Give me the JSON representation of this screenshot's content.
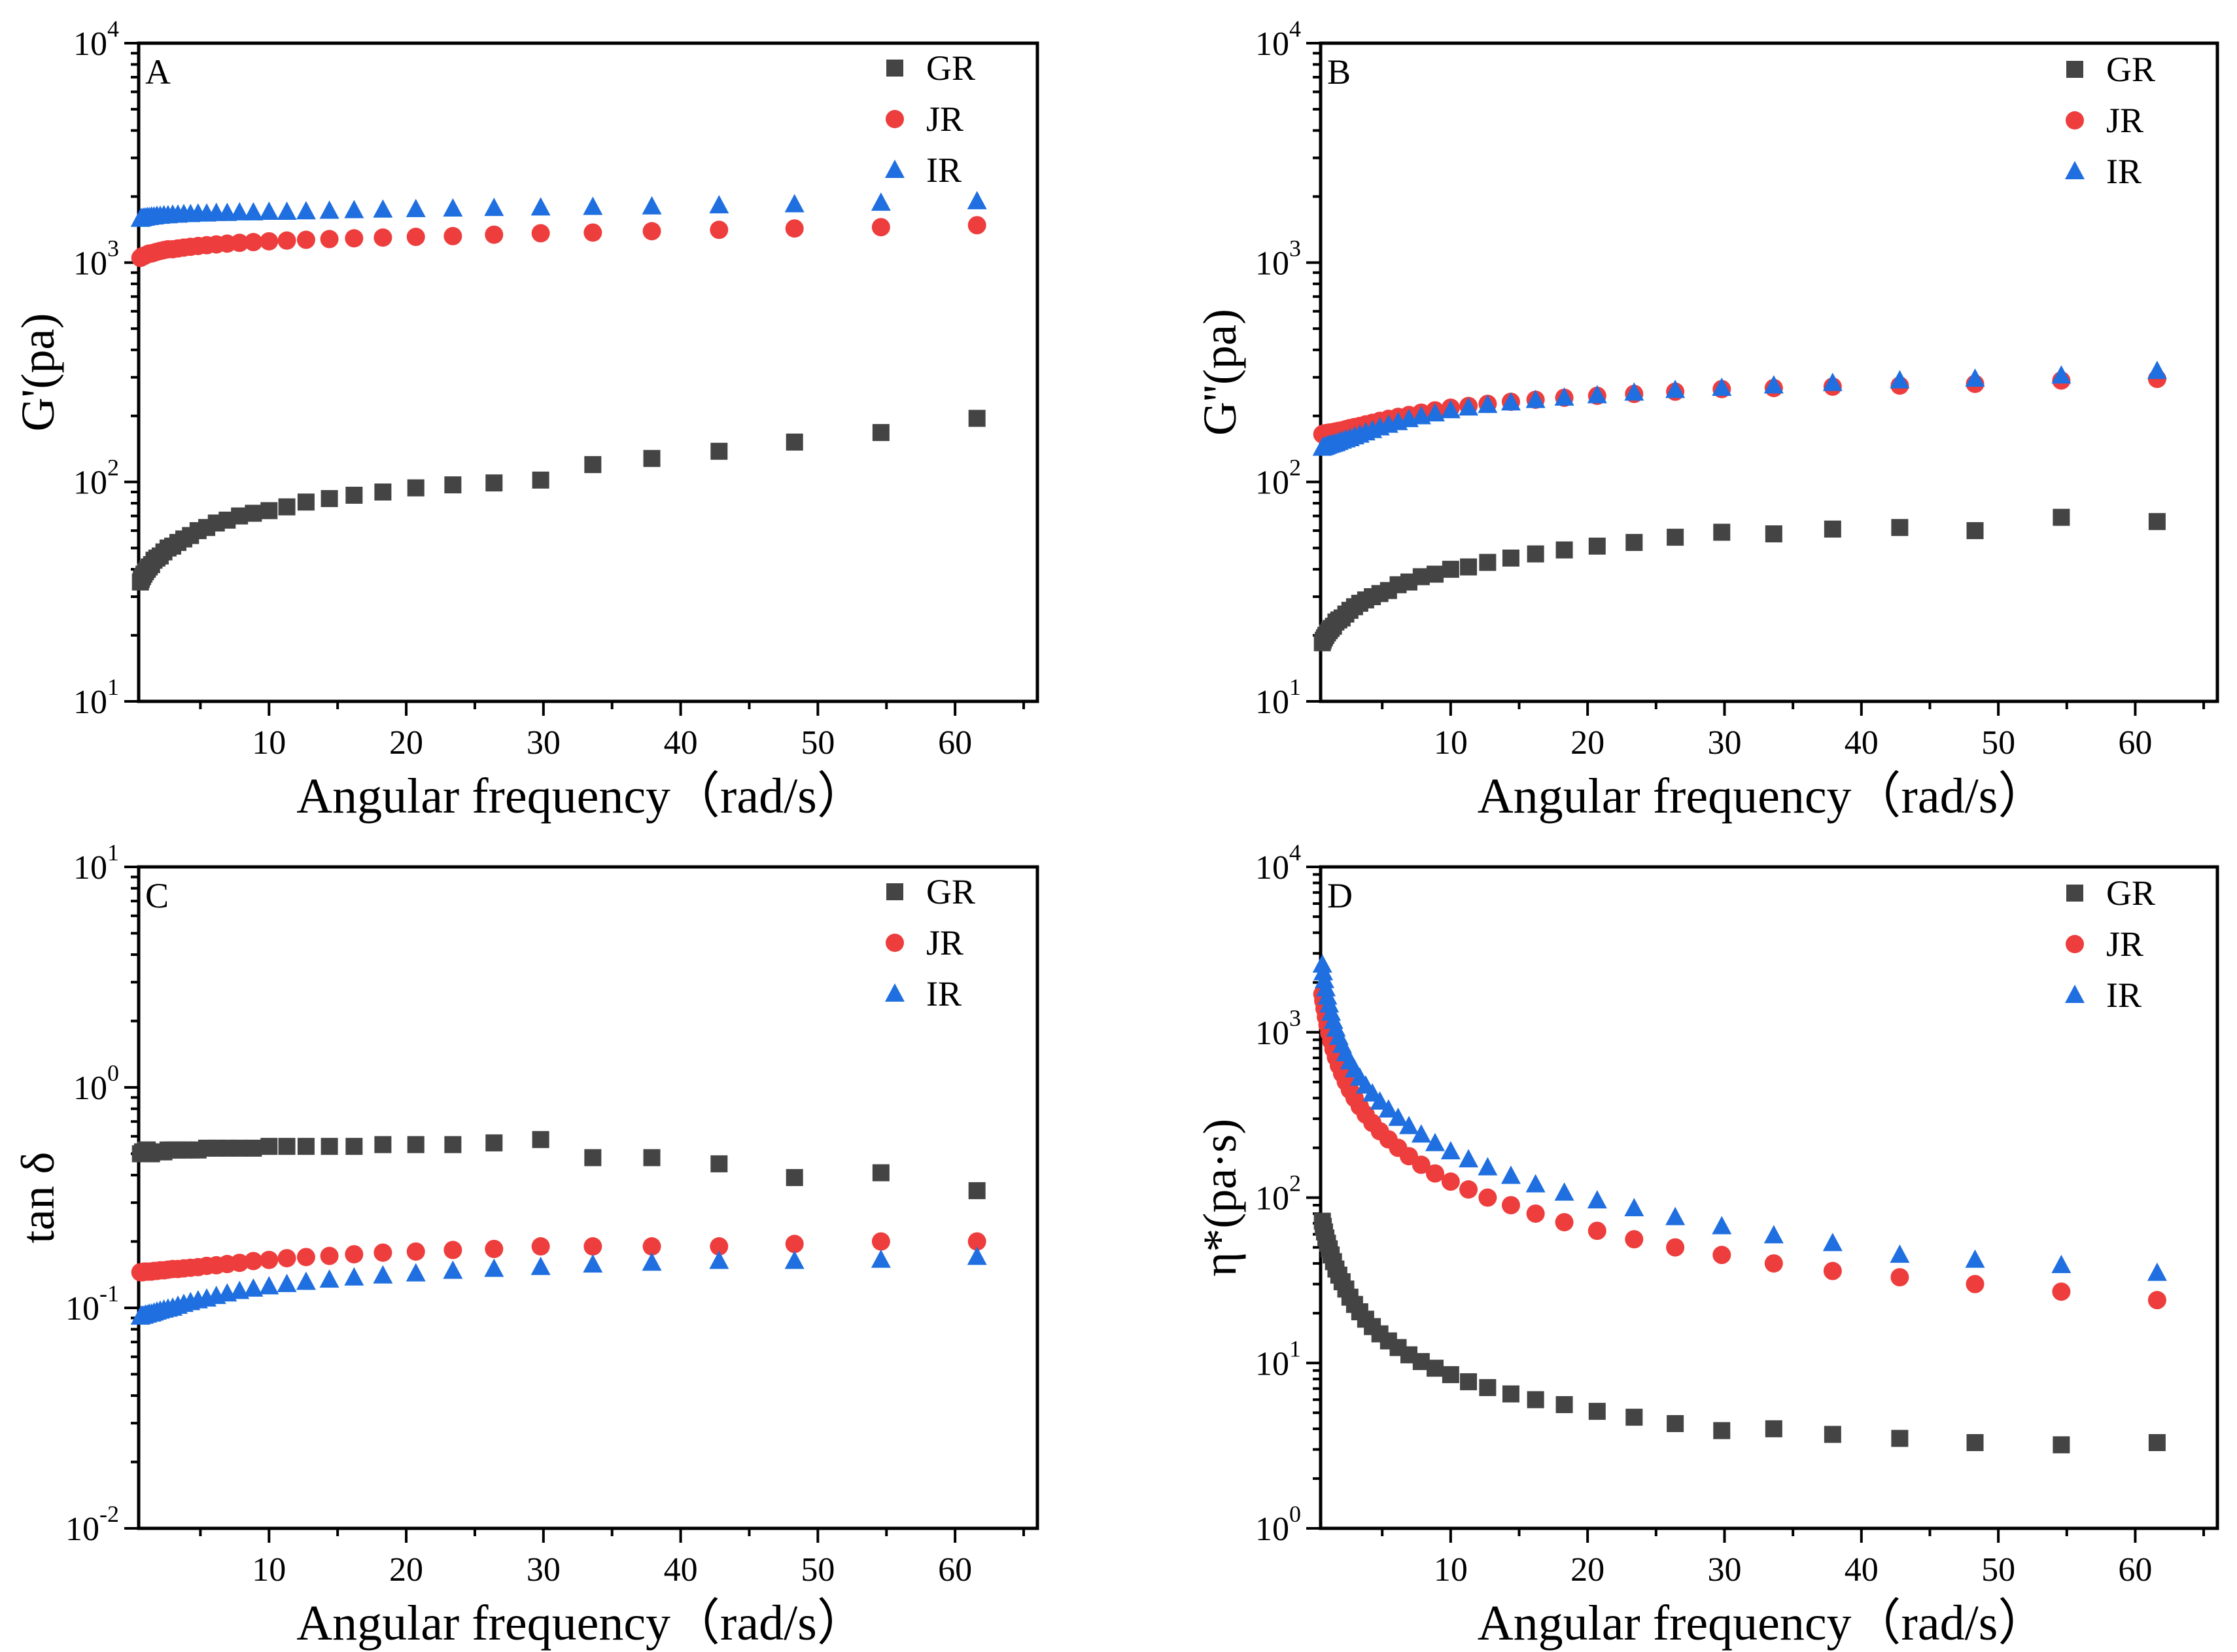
{
  "colors": {
    "GR": "#444444",
    "JR": "#ee3d3d",
    "IR": "#1f6fe0",
    "axis": "#000000"
  },
  "x_shared": [
    61.6,
    54.6,
    48.3,
    42.8,
    37.9,
    33.6,
    29.8,
    26.4,
    23.4,
    20.7,
    18.3,
    16.2,
    14.4,
    12.7,
    11.3,
    10.0,
    8.86,
    7.85,
    6.95,
    6.16,
    5.46,
    4.83,
    4.28,
    3.79,
    3.36,
    2.98,
    2.64,
    2.34,
    2.07,
    1.83,
    1.62,
    1.44,
    1.27,
    1.13,
    1.0,
    0.886,
    0.785,
    0.695,
    0.628
  ],
  "chart_data": [
    {
      "type": "scatter",
      "panel": "A",
      "xlabel": "Angular frequency（rad/s）",
      "ylabel": "G'(pa)",
      "yscale": "log",
      "xlim": [
        0.5,
        66
      ],
      "ylim_exp": [
        1,
        4
      ],
      "xticks": [
        10,
        20,
        30,
        40,
        50,
        60
      ],
      "yticks_exp": [
        1,
        2,
        3,
        4
      ],
      "legend": "top-right",
      "series": [
        {
          "name": "GR",
          "marker": "square",
          "values": [
            195,
            168,
            152,
            138,
            128,
            120,
            102,
            99,
            97,
            94,
            90,
            87,
            84,
            81,
            77,
            74,
            72,
            70,
            67,
            65,
            62,
            60,
            57,
            55,
            53,
            51,
            50,
            48,
            46,
            45,
            44,
            42,
            41,
            40,
            39,
            38,
            37,
            36,
            35
          ]
        },
        {
          "name": "JR",
          "marker": "circle",
          "values": [
            1480,
            1450,
            1430,
            1410,
            1390,
            1370,
            1360,
            1340,
            1320,
            1310,
            1300,
            1290,
            1280,
            1270,
            1260,
            1250,
            1240,
            1230,
            1220,
            1210,
            1200,
            1190,
            1180,
            1170,
            1160,
            1150,
            1150,
            1140,
            1130,
            1120,
            1110,
            1100,
            1100,
            1090,
            1080,
            1070,
            1070,
            1060,
            1050
          ]
        },
        {
          "name": "IR",
          "marker": "triangle",
          "values": [
            1900,
            1870,
            1840,
            1820,
            1800,
            1790,
            1780,
            1770,
            1760,
            1750,
            1740,
            1730,
            1720,
            1710,
            1700,
            1700,
            1690,
            1690,
            1680,
            1680,
            1670,
            1670,
            1660,
            1660,
            1650,
            1650,
            1640,
            1640,
            1630,
            1630,
            1620,
            1620,
            1610,
            1610,
            1600,
            1600,
            1590,
            1590,
            1580
          ]
        }
      ]
    },
    {
      "type": "scatter",
      "panel": "B",
      "xlabel": "Angular frequency（rad/s）",
      "ylabel": "G''(pa)",
      "yscale": "log",
      "xlim": [
        0.5,
        66
      ],
      "ylim_exp": [
        1,
        4
      ],
      "xticks": [
        10,
        20,
        30,
        40,
        50,
        60
      ],
      "yticks_exp": [
        1,
        2,
        3,
        4
      ],
      "legend": "top-right",
      "series": [
        {
          "name": "GR",
          "marker": "square",
          "values": [
            66,
            69,
            60,
            62,
            61,
            58,
            59,
            56,
            53,
            51,
            49,
            47,
            45,
            43,
            41,
            40,
            38,
            37,
            35,
            34,
            32,
            31,
            30,
            29,
            28,
            27,
            26,
            25,
            24,
            23.5,
            23,
            22,
            21.5,
            21,
            20.5,
            20,
            19.5,
            19,
            18.5
          ]
        },
        {
          "name": "JR",
          "marker": "circle",
          "values": [
            295,
            290,
            280,
            275,
            272,
            268,
            265,
            258,
            252,
            247,
            242,
            237,
            232,
            227,
            222,
            218,
            212,
            207,
            202,
            198,
            194,
            190,
            186,
            183,
            180,
            178,
            176,
            174,
            172,
            171,
            170,
            169,
            168,
            168,
            167,
            167,
            166,
            166,
            165
          ]
        },
        {
          "name": "IR",
          "marker": "triangle",
          "values": [
            320,
            305,
            295,
            290,
            282,
            275,
            268,
            262,
            255,
            248,
            242,
            236,
            230,
            224,
            218,
            212,
            205,
            199,
            193,
            187,
            182,
            177,
            172,
            168,
            164,
            161,
            158,
            156,
            154,
            152,
            150,
            149,
            148,
            147,
            146,
            145,
            144,
            144,
            143
          ]
        }
      ]
    },
    {
      "type": "scatter",
      "panel": "C",
      "xlabel": "Angular frequency（rad/s）",
      "ylabel": "tan δ",
      "yscale": "log",
      "xlim": [
        0.5,
        66
      ],
      "ylim_exp": [
        -2,
        1
      ],
      "xticks": [
        10,
        20,
        30,
        40,
        50,
        60
      ],
      "yticks_exp": [
        -2,
        -1,
        0,
        1
      ],
      "legend": "top-right",
      "series": [
        {
          "name": "GR",
          "marker": "square",
          "values": [
            0.34,
            0.41,
            0.39,
            0.45,
            0.48,
            0.48,
            0.58,
            0.56,
            0.55,
            0.55,
            0.55,
            0.54,
            0.54,
            0.54,
            0.54,
            0.54,
            0.53,
            0.53,
            0.53,
            0.53,
            0.53,
            0.52,
            0.52,
            0.52,
            0.52,
            0.52,
            0.52,
            0.51,
            0.51,
            0.51,
            0.51,
            0.5,
            0.5,
            0.52,
            0.52,
            0.51,
            0.51,
            0.5,
            0.5
          ]
        },
        {
          "name": "JR",
          "marker": "circle",
          "values": [
            0.2,
            0.2,
            0.195,
            0.19,
            0.19,
            0.19,
            0.19,
            0.185,
            0.183,
            0.18,
            0.178,
            0.175,
            0.172,
            0.17,
            0.168,
            0.165,
            0.163,
            0.16,
            0.158,
            0.156,
            0.155,
            0.153,
            0.152,
            0.151,
            0.15,
            0.15,
            0.149,
            0.148,
            0.148,
            0.147,
            0.147,
            0.146,
            0.146,
            0.146,
            0.146,
            0.146,
            0.145,
            0.145,
            0.145
          ]
        },
        {
          "name": "IR",
          "marker": "triangle",
          "values": [
            0.17,
            0.165,
            0.163,
            0.163,
            0.16,
            0.157,
            0.153,
            0.15,
            0.147,
            0.143,
            0.14,
            0.137,
            0.134,
            0.131,
            0.128,
            0.125,
            0.122,
            0.119,
            0.116,
            0.113,
            0.11,
            0.108,
            0.106,
            0.104,
            0.102,
            0.1,
            0.099,
            0.098,
            0.097,
            0.096,
            0.095,
            0.094,
            0.094,
            0.093,
            0.093,
            0.092,
            0.092,
            0.092,
            0.091
          ]
        }
      ]
    },
    {
      "type": "scatter",
      "panel": "D",
      "xlabel": "Angular frequency（rad/s）",
      "ylabel": "η*(pa·s)",
      "yscale": "log",
      "xlim": [
        0.5,
        66
      ],
      "ylim_exp": [
        0,
        4
      ],
      "xticks": [
        10,
        20,
        30,
        40,
        50,
        60
      ],
      "yticks_exp": [
        0,
        1,
        2,
        3,
        4
      ],
      "legend": "top-right",
      "series": [
        {
          "name": "GR",
          "marker": "square",
          "values": [
            3.3,
            3.2,
            3.3,
            3.5,
            3.7,
            4.0,
            3.9,
            4.3,
            4.7,
            5.1,
            5.6,
            6.0,
            6.5,
            7.1,
            7.7,
            8.5,
            9.3,
            10.2,
            11.2,
            12.4,
            13.6,
            15.0,
            16.6,
            18.4,
            20.4,
            22.6,
            25,
            28,
            31,
            34,
            37,
            41,
            45,
            49,
            53,
            57,
            62,
            67,
            72
          ]
        },
        {
          "name": "JR",
          "marker": "circle",
          "values": [
            24,
            27,
            30,
            33,
            36,
            40,
            45,
            50,
            56,
            63,
            71,
            80,
            90,
            100,
            112,
            125,
            140,
            158,
            178,
            200,
            225,
            252,
            283,
            318,
            356,
            400,
            448,
            502,
            563,
            630,
            706,
            790,
            885,
            990,
            1110,
            1240,
            1390,
            1550,
            1700
          ]
        },
        {
          "name": "IR",
          "marker": "triangle",
          "values": [
            35,
            39,
            42,
            45,
            53,
            59,
            67,
            76,
            86,
            96,
            107,
            120,
            135,
            152,
            170,
            190,
            213,
            240,
            270,
            303,
            340,
            380,
            425,
            475,
            530,
            595,
            665,
            745,
            835,
            935,
            1050,
            1170,
            1310,
            1470,
            1640,
            1840,
            2060,
            2300,
            2560
          ]
        }
      ]
    }
  ]
}
